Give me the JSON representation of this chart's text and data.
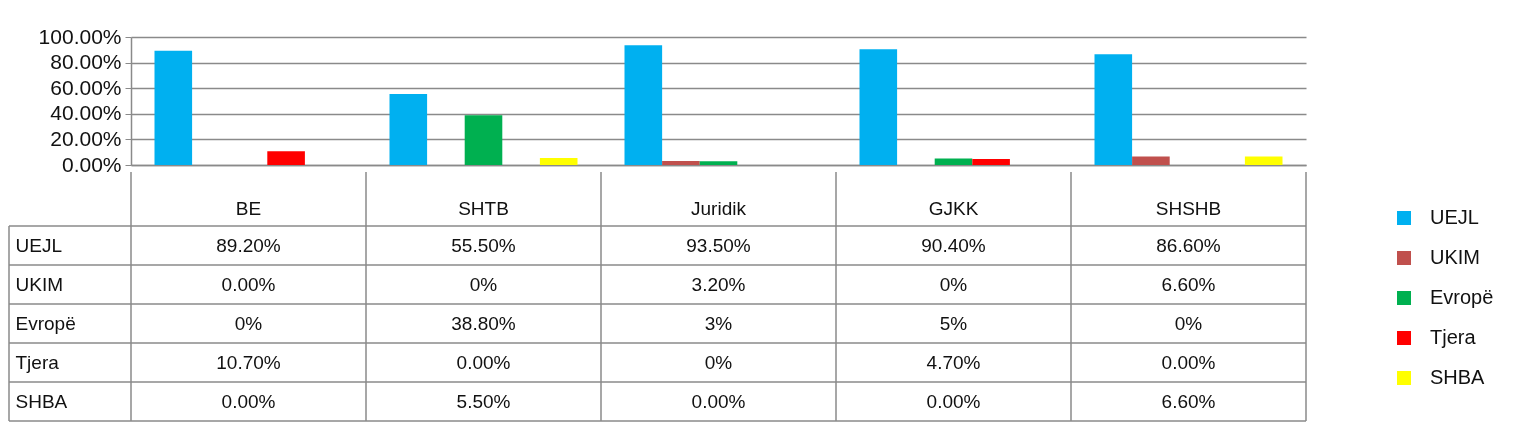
{
  "chart_data": {
    "type": "bar",
    "categories": [
      "BE",
      "SHTB",
      "Juridik",
      "GJKK",
      "SHSHB"
    ],
    "series": [
      {
        "name": "UEJL",
        "color": "#00b0f0",
        "values": [
          89.2,
          55.5,
          93.5,
          90.4,
          86.6
        ],
        "value_labels": [
          "89.20%",
          "55.50%",
          "93.50%",
          "90.40%",
          "86.60%"
        ]
      },
      {
        "name": "UKIM",
        "color": "#c0504d",
        "values": [
          0,
          0,
          3.2,
          0,
          6.6
        ],
        "value_labels": [
          "0.00%",
          "0%",
          "3.20%",
          "0%",
          "6.60%"
        ]
      },
      {
        "name": "Evropë",
        "color": "#00b050",
        "values": [
          0,
          38.8,
          3,
          5,
          0
        ],
        "value_labels": [
          "0%",
          "38.80%",
          "3%",
          "5%",
          "0%"
        ]
      },
      {
        "name": "Tjera",
        "color": "#ff0000",
        "values": [
          10.7,
          0,
          0,
          4.7,
          0
        ],
        "value_labels": [
          "10.70%",
          "0.00%",
          "0%",
          "4.70%",
          "0.00%"
        ]
      },
      {
        "name": "SHBA",
        "color": "#ffff00",
        "values": [
          0,
          5.5,
          0,
          0,
          6.6
        ],
        "value_labels": [
          "0.00%",
          "5.50%",
          "0.00%",
          "0.00%",
          "6.60%"
        ]
      }
    ],
    "ylim": [
      0,
      100
    ],
    "yticks": [
      {
        "value": 0,
        "label": "0.00%"
      },
      {
        "value": 20,
        "label": "20.00%"
      },
      {
        "value": 40,
        "label": "40.00%"
      },
      {
        "value": 60,
        "label": "60.00%"
      },
      {
        "value": 80,
        "label": "80.00%"
      },
      {
        "value": 100,
        "label": "100.00%"
      }
    ],
    "grid": "y",
    "legend": "right"
  }
}
